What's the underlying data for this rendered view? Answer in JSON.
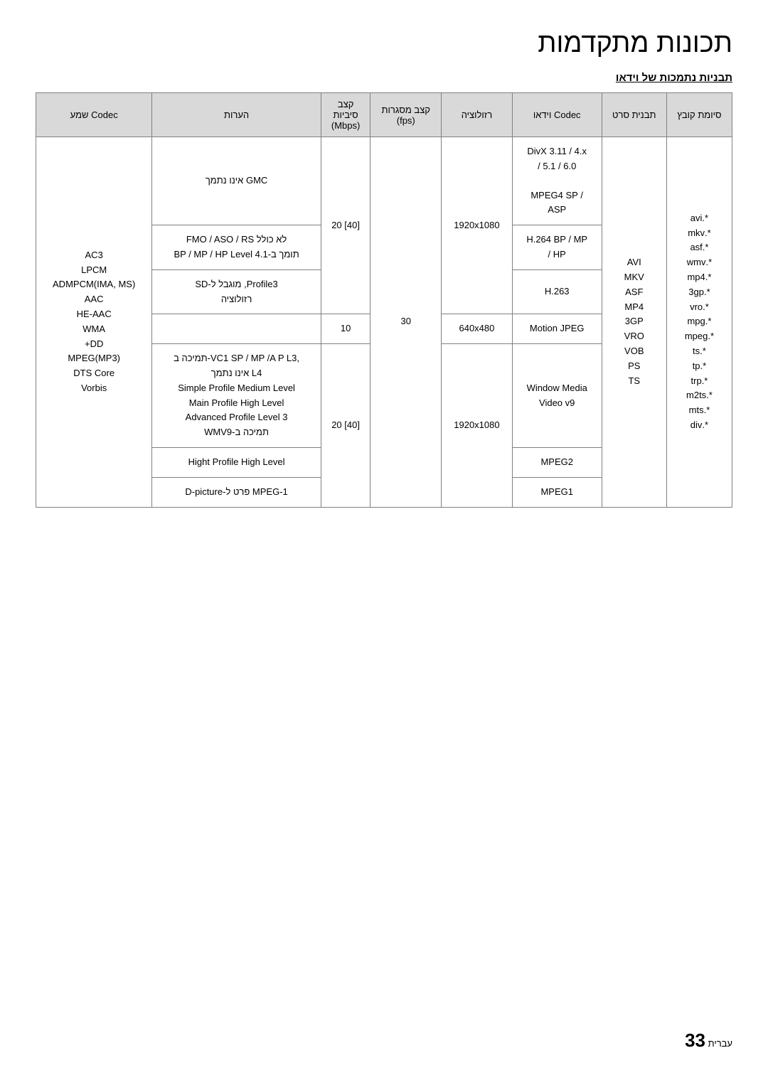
{
  "page_title": "תכונות מתקדמות",
  "subtitle": "תבניות נתמכות של וידאו",
  "headers": {
    "ext": "סיומת קובץ",
    "container": "תבנית סרט",
    "vcodec": "Codec וידאו",
    "resolution": "רזולוציה",
    "fps": "קצב מסגרות\n(fps)",
    "bitrate": "קצב\nסיביות\n(Mbps)",
    "notes": "הערות",
    "acodec": "Codec שמע"
  },
  "extensions": "*.avi\n*.mkv\n*.asf\n*.wmv\n*.mp4\n*.3gp\n*.vro\n*.mpg\n*.mpeg\n*.ts\n*.tp\n*.trp\n*.m2ts\n*.mts\n*.div",
  "containers": "AVI\nMKV\nASF\nMP4\n3GP\nVRO\nVOB\nPS\nTS",
  "vcodecs": {
    "divx": "DivX 3.11 / 4.x\n6.0 / 5.1 /",
    "mpeg4": "/ MPEG4 SP\nASP",
    "h264": "H.264 BP / MP\nHP /",
    "h263": "H.263",
    "mjpeg": "Motion JPEG",
    "wmv": "Window Media\nVideo v9",
    "mpeg2": "MPEG2",
    "mpeg1": "MPEG1"
  },
  "resolutions": {
    "hd1": "1920x1080",
    "sd": "640x480",
    "hd2": "1920x1080"
  },
  "fps": "30",
  "bitrates": {
    "b1": "[40] 20",
    "b2": "10",
    "b3": "[40] 20"
  },
  "notes": {
    "gmc": "GMC אינו נתמך",
    "fmo": "לא כולל FMO / ASO / RS\nתומך ב-BP / MP / HP Level 4.1",
    "profile3": "Profile3, מוגבל ל-SD\nרזולוציה",
    "empty": "",
    "wmv9": ",VC1 SP / MP /A P L3-תמיכה ב\nL4 אינו נתמך\nSimple Profile Medium Level\nMain Profile High Level\nAdvanced Profile Level 3\nתמיכה ב-WMV9",
    "hight": "Hight Profile High Level",
    "dpic": "MPEG-1 פרט ל-D-picture"
  },
  "acodec": "AC3\nLPCM\nADMPCM(IMA, MS)\nAAC\nHE-AAC\nWMA\nDD+\nMPEG(MP3)\nDTS Core\nVorbis",
  "footer": {
    "label": "עברית",
    "page": "33"
  }
}
